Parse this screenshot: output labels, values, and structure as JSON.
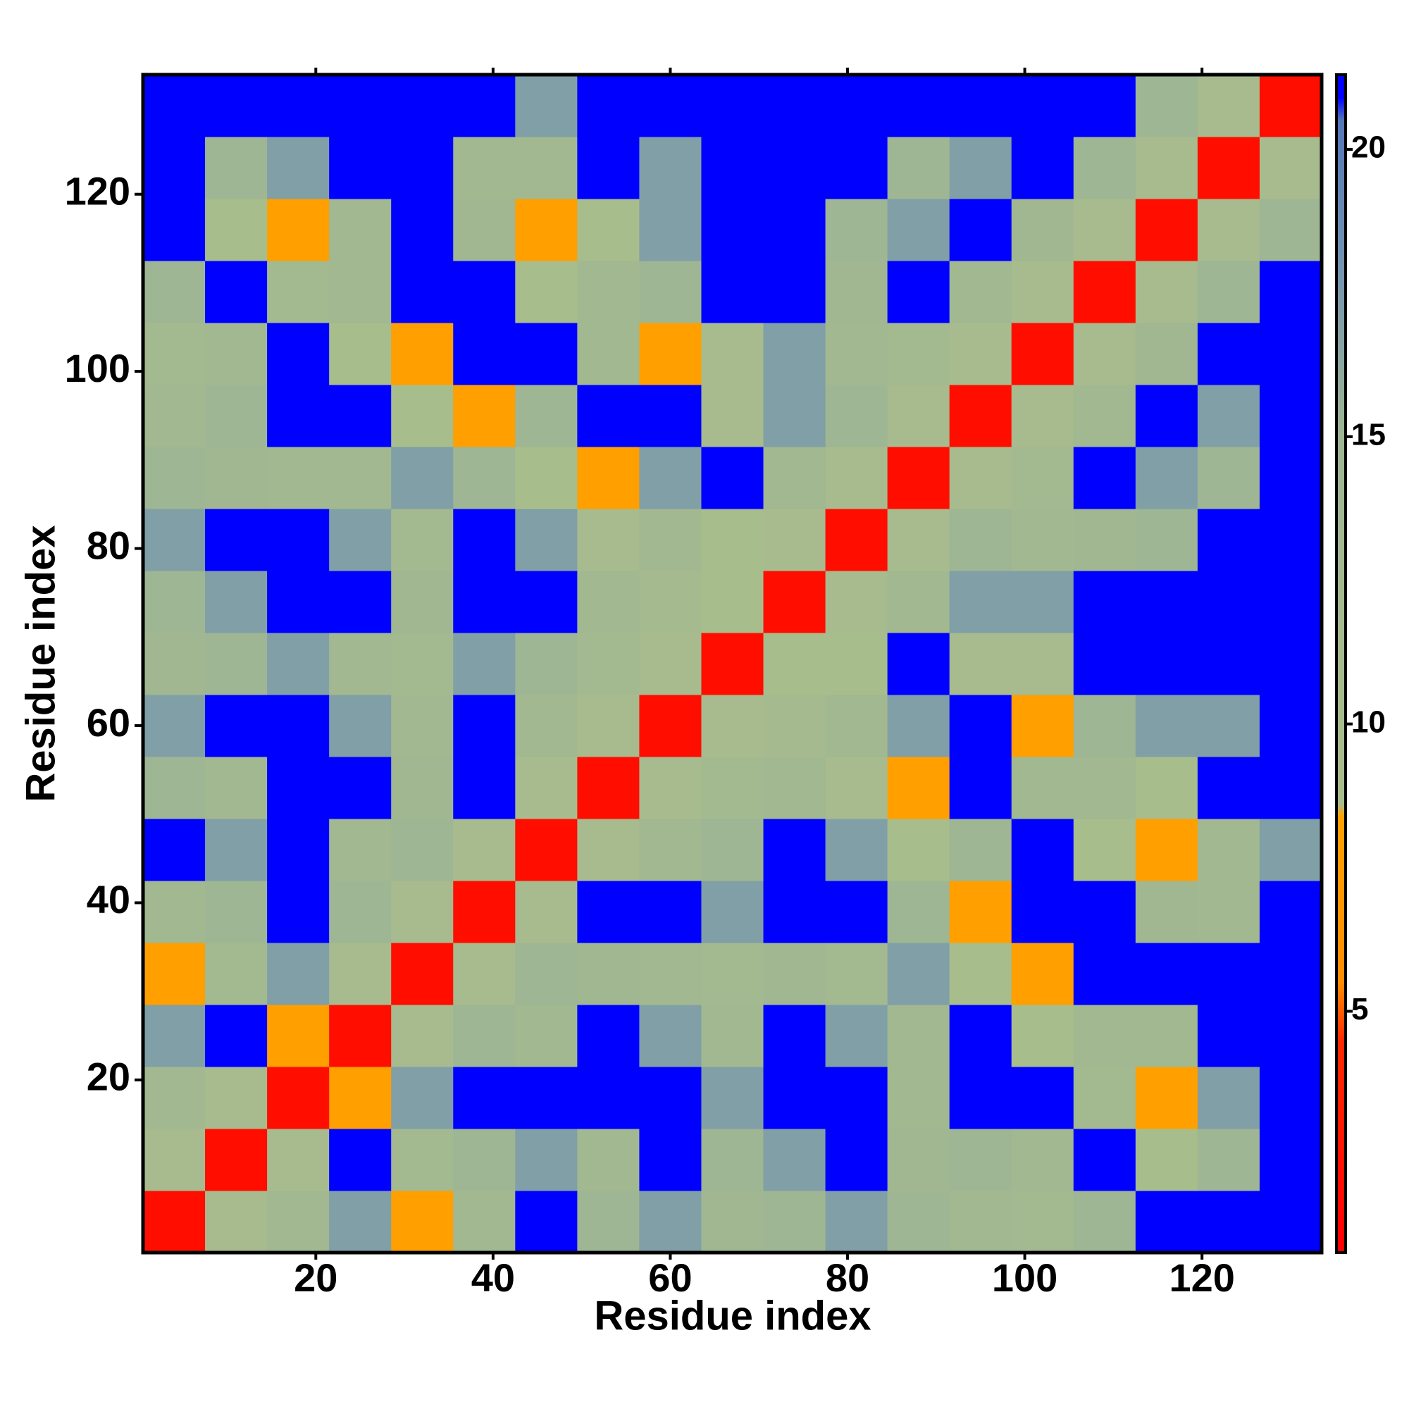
{
  "chart_data": {
    "type": "heatmap",
    "xlabel": "Residue index",
    "ylabel": "Residue index",
    "x": [
      4,
      11,
      18,
      25,
      32,
      39,
      46,
      53,
      60,
      67,
      74,
      81,
      88,
      95,
      102,
      109,
      116,
      123,
      130
    ],
    "y": [
      4,
      11,
      18,
      25,
      32,
      39,
      46,
      53,
      60,
      67,
      74,
      81,
      88,
      95,
      102,
      109,
      116,
      123,
      130
    ],
    "xlim": [
      0.5,
      133.5
    ],
    "ylim": [
      0.5,
      133.5
    ],
    "xticks": [
      20,
      40,
      60,
      80,
      100,
      120
    ],
    "yticks": [
      20,
      40,
      60,
      80,
      100,
      120
    ],
    "zlim": [
      0.8,
      21.3
    ],
    "zticks": [
      5,
      10,
      15,
      20
    ],
    "colorscale": [
      [
        0.8,
        "#ff0000"
      ],
      [
        4.5,
        "#ff2a00"
      ],
      [
        5.5,
        "#ff8c00"
      ],
      [
        8.4,
        "#ffa200"
      ],
      [
        8.6,
        "#a9bd8c"
      ],
      [
        15,
        "#9eb693"
      ],
      [
        18,
        "#7393b0"
      ],
      [
        20.5,
        "#5577b8"
      ],
      [
        20.9,
        "#0000ff"
      ],
      [
        21.3,
        "#0000ff"
      ]
    ],
    "z": [
      [
        2,
        10,
        13,
        17,
        8,
        13,
        21,
        15,
        17,
        14,
        15,
        17,
        15,
        13,
        12,
        15,
        21,
        21,
        21
      ],
      [
        10,
        2,
        10,
        21,
        12,
        15,
        17,
        13,
        21,
        15,
        17,
        21,
        14,
        15,
        13,
        21,
        9,
        15,
        21
      ],
      [
        13,
        10,
        2,
        8,
        17,
        21,
        21,
        21,
        21,
        17,
        21,
        21,
        13,
        21,
        21,
        12,
        8,
        17,
        21
      ],
      [
        17,
        21,
        8,
        2,
        10,
        15,
        13,
        21,
        17,
        13,
        21,
        17,
        13,
        21,
        9,
        13,
        13,
        21,
        21
      ],
      [
        8,
        12,
        17,
        10,
        2,
        10,
        15,
        14,
        13,
        12,
        14,
        12,
        17,
        9,
        8,
        21,
        21,
        21,
        21
      ],
      [
        13,
        15,
        21,
        15,
        10,
        2,
        10,
        21,
        21,
        17,
        21,
        21,
        15,
        8,
        21,
        21,
        14,
        13,
        21
      ],
      [
        21,
        17,
        21,
        13,
        15,
        10,
        2,
        10,
        13,
        15,
        21,
        17,
        9,
        15,
        21,
        9,
        8,
        13,
        17
      ],
      [
        15,
        13,
        21,
        21,
        14,
        21,
        10,
        2,
        10,
        12,
        13,
        10,
        8,
        21,
        13,
        13,
        9,
        21,
        21
      ],
      [
        17,
        21,
        21,
        17,
        13,
        21,
        13,
        10,
        2,
        10,
        11,
        13,
        17,
        21,
        8,
        15,
        17,
        17,
        21
      ],
      [
        14,
        15,
        17,
        13,
        12,
        17,
        15,
        12,
        10,
        2,
        9,
        9,
        21,
        10,
        10,
        21,
        21,
        21,
        21
      ],
      [
        15,
        17,
        21,
        21,
        14,
        21,
        21,
        13,
        11,
        9,
        2,
        10,
        13,
        17,
        17,
        21,
        21,
        21,
        21
      ],
      [
        17,
        21,
        21,
        17,
        12,
        21,
        17,
        10,
        13,
        9,
        10,
        2,
        10,
        15,
        13,
        14,
        15,
        21,
        21
      ],
      [
        15,
        14,
        13,
        13,
        17,
        15,
        9,
        8,
        17,
        21,
        13,
        10,
        2,
        10,
        12,
        21,
        17,
        15,
        21
      ],
      [
        13,
        15,
        21,
        21,
        9,
        8,
        15,
        21,
        21,
        10,
        17,
        15,
        10,
        2,
        10,
        13,
        21,
        17,
        21
      ],
      [
        12,
        13,
        21,
        9,
        8,
        21,
        21,
        13,
        8,
        10,
        17,
        13,
        12,
        10,
        2,
        10,
        14,
        21,
        21
      ],
      [
        15,
        21,
        12,
        13,
        21,
        21,
        9,
        13,
        15,
        21,
        21,
        14,
        21,
        13,
        10,
        2,
        10,
        15,
        21
      ],
      [
        21,
        9,
        8,
        13,
        21,
        14,
        8,
        9,
        17,
        21,
        21,
        15,
        17,
        21,
        14,
        10,
        2,
        10,
        15
      ],
      [
        21,
        15,
        17,
        21,
        21,
        13,
        13,
        21,
        17,
        21,
        21,
        21,
        15,
        17,
        21,
        15,
        10,
        2,
        10
      ],
      [
        21,
        21,
        21,
        21,
        21,
        21,
        17,
        21,
        21,
        21,
        21,
        21,
        21,
        21,
        21,
        21,
        15,
        10,
        2
      ]
    ]
  }
}
